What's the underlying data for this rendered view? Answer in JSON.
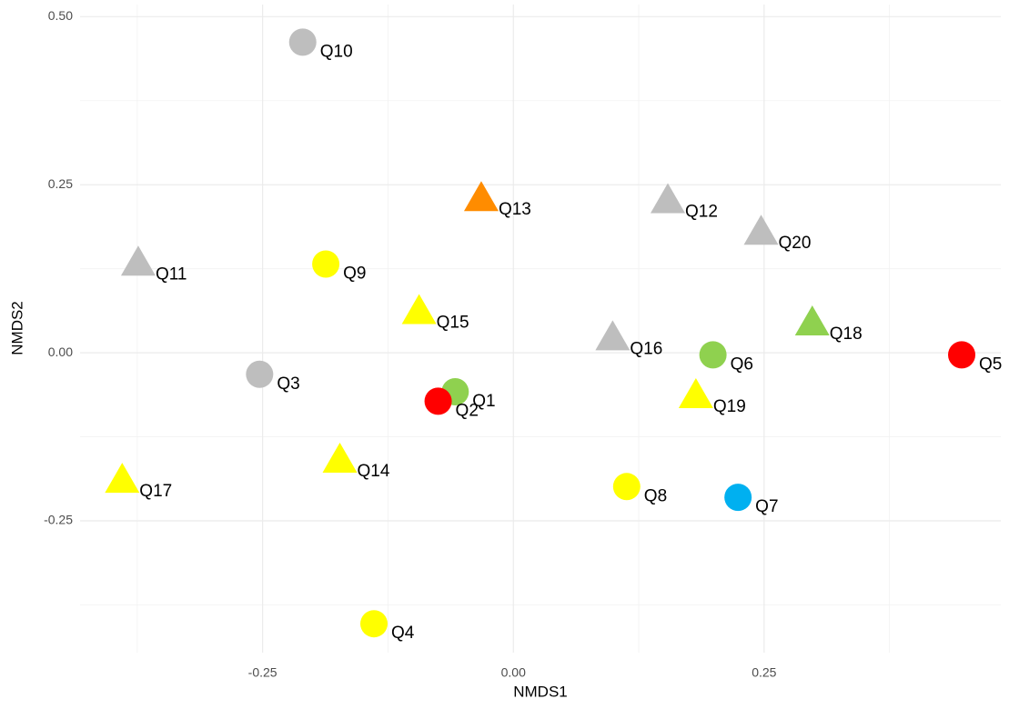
{
  "chart_data": {
    "type": "scatter",
    "x_label": "NMDS1",
    "y_label": "NMDS2",
    "labels": [
      "Q10",
      "Q13",
      "Q12",
      "Q20",
      "Q11",
      "Q9",
      "Q15",
      "Q16",
      "Q6",
      "Q18",
      "Q5",
      "Q3",
      "Q1",
      "Q2",
      "Q19",
      "Q14",
      "Q17",
      "Q8",
      "Q7",
      "Q4"
    ],
    "x": [
      -0.21,
      -0.032,
      0.154,
      0.247,
      -0.374,
      -0.187,
      -0.094,
      0.099,
      0.199,
      0.298,
      0.447,
      -0.253,
      -0.058,
      -0.075,
      0.182,
      -0.173,
      -0.39,
      0.113,
      0.224,
      -0.139
    ],
    "values": [
      0.462,
      0.227,
      0.224,
      0.177,
      0.131,
      0.132,
      0.059,
      0.02,
      -0.003,
      0.042,
      -0.003,
      -0.032,
      -0.058,
      -0.072,
      -0.066,
      -0.162,
      -0.192,
      -0.199,
      -0.215,
      -0.403
    ],
    "colors": [
      "#bebebe",
      "#ff8c00",
      "#bebebe",
      "#bebebe",
      "#bebebe",
      "#ffff00",
      "#ffff00",
      "#bebebe",
      "#8fd14f",
      "#8fd14f",
      "#ff0000",
      "#bebebe",
      "#8fd14f",
      "#ff0000",
      "#ffff00",
      "#ffff00",
      "#ffff00",
      "#ffff00",
      "#00b0f0",
      "#ffff00"
    ],
    "shapes": [
      "circle",
      "triangle",
      "triangle",
      "triangle",
      "triangle",
      "circle",
      "triangle",
      "triangle",
      "circle",
      "triangle",
      "circle",
      "circle",
      "circle",
      "circle",
      "triangle",
      "triangle",
      "triangle",
      "circle",
      "circle",
      "circle"
    ],
    "xlim": [
      -0.432,
      0.486
    ],
    "ylim": [
      -0.446,
      0.518
    ],
    "xticks": [
      -0.25,
      {
        "value": 0,
        "label": "0.00"
      },
      0.25
    ],
    "yticks": [
      {
        "value": -0.25,
        "label": "-0.25"
      },
      {
        "value": 0,
        "label": "0.00"
      },
      0.25,
      {
        "value": 0.5,
        "label": "0.50"
      }
    ],
    "xminor": [
      -0.375,
      -0.125,
      0.125,
      0.375
    ],
    "yminor": [
      -0.375,
      -0.125,
      0.125,
      0.375
    ],
    "grid": true
  }
}
